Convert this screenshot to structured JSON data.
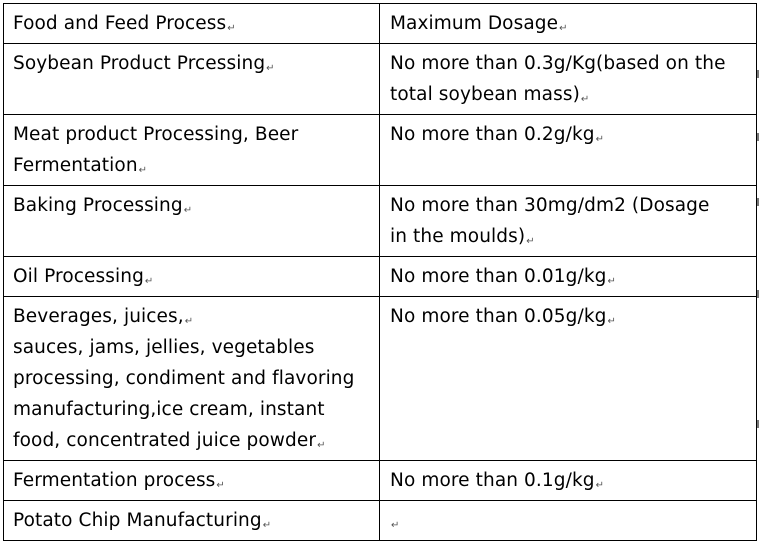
{
  "table": {
    "header": {
      "col1": "Food and Feed Process",
      "col2": "Maximum Dosage"
    },
    "rows": [
      {
        "process_lines": [
          "Soybean Product Prcessing"
        ],
        "dosage_lines": [
          "No more than 0.3g/Kg(based on the",
          "total soybean mass)"
        ]
      },
      {
        "process_lines": [
          "Meat product Processing, Beer",
          "Fermentation"
        ],
        "dosage_lines": [
          "No more than 0.2g/kg"
        ]
      },
      {
        "process_lines": [
          "Baking Processing"
        ],
        "dosage_lines": [
          "No more than 30mg/dm2 (Dosage",
          "in the moulds)"
        ]
      },
      {
        "process_lines": [
          "Oil Processing"
        ],
        "dosage_lines": [
          "No more than 0.01g/kg"
        ]
      },
      {
        "process_lines": [
          "Beverages, juices,",
          "sauces, jams, jellies, vegetables",
          "processing, condiment and flavoring",
          "manufacturing,ice cream, instant",
          "food, concentrated juice powder"
        ],
        "dosage_lines": [
          "No more than 0.05g/kg"
        ]
      },
      {
        "process_lines": [
          "Fermentation process"
        ],
        "dosage_lines": [
          "No more than 0.1g/kg"
        ]
      },
      {
        "process_lines": [
          "Potato Chip Manufacturing"
        ],
        "dosage_lines": [
          ""
        ]
      }
    ]
  },
  "marks": {
    "paragraph": "↵"
  }
}
